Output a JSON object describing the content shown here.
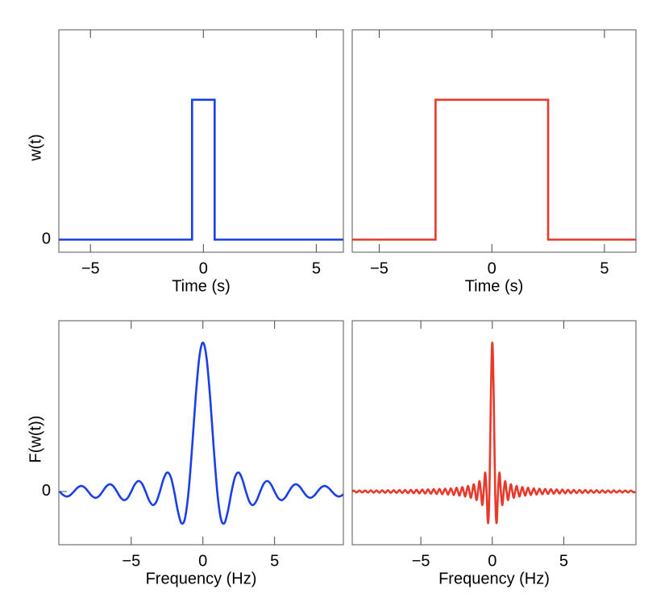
{
  "chart_data": [
    {
      "type": "line",
      "ylabel": "w(t)",
      "xlabel": "Time (s)",
      "color": "#1a3fe6",
      "x": [
        -6.4,
        -0.5,
        -0.5,
        0.5,
        0.5,
        6.2
      ],
      "values": [
        0,
        0,
        1,
        1,
        0,
        0
      ],
      "xlim": [
        -6.4,
        6.2
      ],
      "ylim": [
        -0.09,
        1.5
      ],
      "xticks": [
        {
          "value": -5,
          "label": "−5"
        },
        0,
        5
      ],
      "yticks": [
        0
      ],
      "smooth": false
    },
    {
      "type": "line",
      "xlabel": "Time (s)",
      "color": "#e8392b",
      "x": [
        -6.2,
        -2.5,
        -2.5,
        2.5,
        2.5,
        6.4
      ],
      "values": [
        0,
        0,
        1,
        1,
        0,
        0
      ],
      "xlim": [
        -6.2,
        6.4
      ],
      "ylim": [
        -0.09,
        1.5
      ],
      "xticks": [
        {
          "value": -5,
          "label": "−5"
        },
        0,
        5
      ],
      "yticks": [],
      "smooth": false
    },
    {
      "type": "line",
      "ylabel": "F(w(t))",
      "xlabel": "Frequency (Hz)",
      "color": "#1a3fe6",
      "x": [
        -10,
        -9.75,
        -9.5,
        -9.25,
        -9,
        -8.75,
        -8.5,
        -8.25,
        -8,
        -7.75,
        -7.5,
        -7.25,
        -7,
        -6.75,
        -6.5,
        -6.25,
        -6,
        -5.75,
        -5.5,
        -5.25,
        -5,
        -4.75,
        -4.5,
        -4.25,
        -4,
        -3.75,
        -3.5,
        -3.25,
        -3,
        -2.75,
        -2.5,
        -2.25,
        -2,
        -1.75,
        -1.5,
        -1.25,
        -1,
        -0.75,
        -0.5,
        -0.25,
        0,
        0.25,
        0.5,
        0.75,
        1,
        1.25,
        1.5,
        1.75,
        2,
        2.25,
        2.5,
        2.75,
        3,
        3.25,
        3.5,
        3.75,
        4,
        4.25,
        4.5,
        4.75,
        5,
        5.25,
        5.5,
        5.75,
        6,
        6.25,
        6.5,
        6.75,
        7,
        7.25,
        7.5,
        7.75,
        8,
        8.25,
        8.5,
        8.75,
        9,
        9.25,
        9.5,
        9.75,
        10
      ],
      "values": [
        0,
        -0.0231,
        -0.0335,
        -0.0243,
        0,
        0.0257,
        0.0374,
        0.0273,
        0,
        -0.029,
        -0.0424,
        -0.031,
        0,
        0.0333,
        0.049,
        0.036,
        0,
        -0.0391,
        -0.0579,
        -0.0429,
        0,
        0.0474,
        0.0707,
        0.053,
        0,
        -0.06,
        -0.0909,
        -0.0693,
        0,
        0.0818,
        0.1273,
        0.1,
        0,
        -0.1286,
        -0.2122,
        -0.1801,
        0,
        0.3001,
        0.6366,
        0.9003,
        1,
        0.9003,
        0.6366,
        0.3001,
        0,
        -0.1801,
        -0.2122,
        -0.1286,
        0,
        0.1,
        0.1273,
        0.0818,
        0,
        -0.0693,
        -0.0909,
        -0.06,
        0,
        0.053,
        0.0707,
        0.0474,
        0,
        -0.0429,
        -0.0579,
        -0.0391,
        0,
        0.036,
        0.049,
        0.0333,
        0,
        -0.031,
        -0.0424,
        -0.029,
        0,
        0.0273,
        0.0374,
        0.0257,
        0,
        -0.0243,
        -0.0335,
        -0.0231,
        0
      ],
      "xlim": [
        -10.05,
        9.8
      ],
      "ylim": [
        -0.357,
        1.146
      ],
      "xticks": [
        {
          "value": -5,
          "label": "−5"
        },
        0,
        5
      ],
      "yticks": [
        0
      ],
      "smooth": true
    },
    {
      "type": "line",
      "xlabel": "Frequency (Hz)",
      "color": "#e8392b",
      "x": [
        -10,
        -9.9,
        -9.8,
        -9.7,
        -9.6,
        -9.5,
        -9.4,
        -9.3,
        -9.2,
        -9.1,
        -9,
        -8.9,
        -8.8,
        -8.7,
        -8.6,
        -8.5,
        -8.4,
        -8.3,
        -8.2,
        -8.1,
        -8,
        -7.9,
        -7.8,
        -7.7,
        -7.6,
        -7.5,
        -7.4,
        -7.3,
        -7.2,
        -7.1,
        -7,
        -6.9,
        -6.8,
        -6.7,
        -6.6,
        -6.5,
        -6.4,
        -6.3,
        -6.2,
        -6.1,
        -6,
        -5.9,
        -5.8,
        -5.7,
        -5.6,
        -5.5,
        -5.4,
        -5.3,
        -5.2,
        -5.1,
        -5,
        -4.9,
        -4.8,
        -4.7,
        -4.6,
        -4.5,
        -4.4,
        -4.3,
        -4.2,
        -4.1,
        -4,
        -3.9,
        -3.8,
        -3.7,
        -3.6,
        -3.5,
        -3.4,
        -3.3,
        -3.2,
        -3.1,
        -3,
        -2.9,
        -2.8,
        -2.7,
        -2.6,
        -2.5,
        -2.4,
        -2.3,
        -2.2,
        -2.1,
        -2,
        -1.9,
        -1.8,
        -1.7,
        -1.6,
        -1.5,
        -1.4,
        -1.3,
        -1.2,
        -1.1,
        -1,
        -0.9,
        -0.8,
        -0.7,
        -0.6,
        -0.5,
        -0.4,
        -0.3,
        -0.2,
        -0.1,
        0,
        0.1,
        0.2,
        0.3,
        0.4,
        0.5,
        0.6,
        0.7,
        0.8,
        0.9,
        1,
        1.1,
        1.2,
        1.3,
        1.4,
        1.5,
        1.6,
        1.7,
        1.8,
        1.9,
        2,
        2.1,
        2.2,
        2.3,
        2.4,
        2.5,
        2.6,
        2.7,
        2.8,
        2.9,
        3,
        3.1,
        3.2,
        3.3,
        3.4,
        3.5,
        3.6,
        3.7,
        3.8,
        3.9,
        4,
        4.1,
        4.2,
        4.3,
        4.4,
        4.5,
        4.6,
        4.7,
        4.8,
        4.9,
        5,
        5.1,
        5.2,
        5.3,
        5.4,
        5.5,
        5.6,
        5.7,
        5.8,
        5.9,
        6,
        6.1,
        6.2,
        6.3,
        6.4,
        6.5,
        6.6,
        6.7,
        6.8,
        6.9,
        7,
        7.1,
        7.2,
        7.3,
        7.4,
        7.5,
        7.6,
        7.7,
        7.8,
        7.9,
        8,
        8.1,
        8.2,
        8.3,
        8.4,
        8.5,
        8.6,
        8.7,
        8.8,
        8.9,
        9,
        9.1,
        9.2,
        9.3,
        9.4,
        9.5,
        9.6,
        9.7,
        9.8,
        9.9,
        10
      ],
      "values": [
        0,
        -0.0064,
        0,
        0.0066,
        0,
        -0.0067,
        0,
        0.0068,
        0,
        -0.007,
        0,
        0.0072,
        0,
        -0.0073,
        0,
        0.0075,
        0,
        -0.0077,
        0,
        0.0079,
        0,
        -0.0081,
        0,
        0.0083,
        0,
        -0.0085,
        0,
        0.0087,
        0,
        -0.009,
        0,
        0.0092,
        0,
        -0.0095,
        0,
        0.0098,
        0,
        -0.0101,
        0,
        0.0104,
        0,
        -0.0108,
        0,
        0.0112,
        0,
        -0.0116,
        0,
        0.012,
        0,
        -0.0125,
        0,
        0.013,
        0,
        -0.0135,
        0,
        0.0141,
        0,
        -0.0148,
        0,
        0.0155,
        0,
        -0.0163,
        0,
        0.0172,
        0,
        -0.0182,
        0,
        0.0193,
        0,
        -0.0205,
        0,
        0.022,
        0,
        -0.0236,
        0,
        0.0255,
        0,
        -0.0277,
        0,
        0.0303,
        0,
        -0.0335,
        0,
        0.0374,
        0,
        -0.0424,
        0,
        0.049,
        0,
        -0.0579,
        0,
        0.0707,
        0,
        -0.0909,
        0,
        0.1273,
        0,
        -0.2122,
        0,
        0.6366,
        1,
        0.6366,
        0,
        -0.2122,
        0,
        0.1273,
        0,
        -0.0909,
        0,
        0.0707,
        0,
        -0.0579,
        0,
        0.049,
        0,
        -0.0424,
        0,
        0.0374,
        0,
        -0.0335,
        0,
        0.0303,
        0,
        -0.0277,
        0,
        0.0255,
        0,
        -0.0236,
        0,
        0.022,
        0,
        -0.0205,
        0,
        0.0193,
        0,
        -0.0182,
        0,
        0.0172,
        0,
        -0.0163,
        0,
        0.0155,
        0,
        -0.0148,
        0,
        0.0141,
        0,
        -0.0135,
        0,
        0.013,
        0,
        -0.0125,
        0,
        0.012,
        0,
        -0.0116,
        0,
        0.0112,
        0,
        -0.0108,
        0,
        0.0104,
        0,
        -0.0101,
        0,
        0.0098,
        0,
        -0.0095,
        0,
        0.0092,
        0,
        -0.009,
        0,
        0.0087,
        0,
        -0.0085,
        0,
        0.0083,
        0,
        -0.0081,
        0,
        0.0079,
        0,
        -0.0077,
        0,
        0.0075,
        0,
        -0.0073,
        0,
        0.0072,
        0,
        -0.007,
        0,
        0.0068,
        0,
        -0.0067,
        0,
        0.0066,
        0,
        -0.0064,
        0
      ],
      "xlim": [
        -9.8,
        10.05
      ],
      "ylim": [
        -0.357,
        1.146
      ],
      "xticks": [
        {
          "value": -5,
          "label": "−5"
        },
        0,
        5
      ],
      "yticks": [],
      "smooth": true
    }
  ]
}
